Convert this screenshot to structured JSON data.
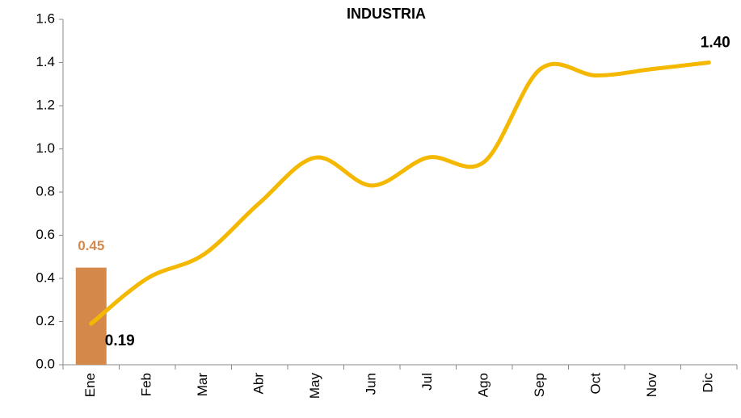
{
  "chart_data": {
    "type": "bar_line",
    "title": "INDUSTRIA",
    "categories": [
      "Ene",
      "Feb",
      "Mar",
      "Abr",
      "May",
      "Jun",
      "Jul",
      "Ago",
      "Sep",
      "Oct",
      "Nov",
      "Dic"
    ],
    "series": [
      {
        "type": "bar",
        "color": "#d4894a",
        "values": [
          0.45,
          null,
          null,
          null,
          null,
          null,
          null,
          null,
          null,
          null,
          null,
          null
        ],
        "value_labels": [
          "0.45",
          null,
          null,
          null,
          null,
          null,
          null,
          null,
          null,
          null,
          null,
          null
        ]
      },
      {
        "type": "line",
        "color": "#f5b800",
        "values": [
          0.19,
          0.4,
          0.51,
          0.75,
          0.96,
          0.83,
          0.96,
          0.94,
          1.37,
          1.34,
          1.37,
          1.4
        ],
        "value_labels": [
          "0.19",
          null,
          null,
          null,
          null,
          null,
          null,
          null,
          null,
          null,
          null,
          "1.40"
        ]
      }
    ],
    "ylim": [
      0,
      1.6
    ],
    "yticks": [
      {
        "value": 0,
        "label": "0.0"
      },
      0.2,
      0.4,
      0.6,
      0.8,
      {
        "value": 1,
        "label": "1.0"
      },
      1.2,
      1.4,
      1.6
    ]
  }
}
